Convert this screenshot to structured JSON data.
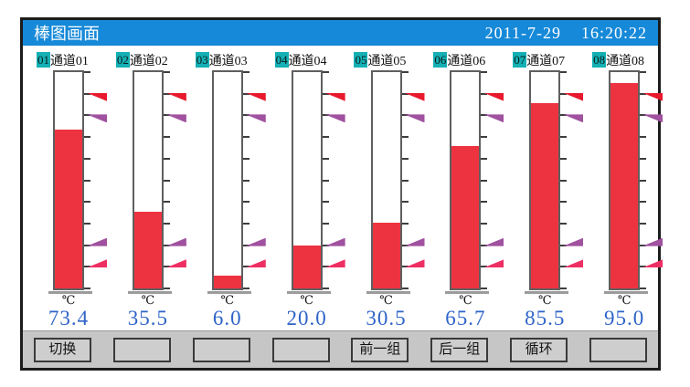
{
  "header": {
    "title": "棒图画面",
    "date": "2011-7-29",
    "time": "16:20:22"
  },
  "colors": {
    "titlebar_blue": "#1689d8",
    "badge_cyan": "#14b0b4",
    "bar_red": "#ee3340",
    "value_blue": "#2e64c8",
    "alarm_red": "#e8192d",
    "alarm_purple": "#a0519f",
    "alarm_pink": "#ee2f63"
  },
  "chart": {
    "unit": "℃",
    "scale_min": 0,
    "scale_max": 100,
    "alarms": [
      {
        "type": "hh",
        "value": 90,
        "color": "#e8192d",
        "direction": "high"
      },
      {
        "type": "h",
        "value": 80,
        "color": "#a0519f",
        "direction": "high"
      },
      {
        "type": "l",
        "value": 20,
        "color": "#a0519f",
        "direction": "low"
      },
      {
        "type": "ll",
        "value": 10,
        "color": "#ee2f63",
        "direction": "low"
      }
    ],
    "channels": [
      {
        "badge": "01",
        "name": "通道01",
        "value": "73.4",
        "percent": 73.4
      },
      {
        "badge": "02",
        "name": "通道02",
        "value": "35.5",
        "percent": 35.5
      },
      {
        "badge": "03",
        "name": "通道03",
        "value": "6.0",
        "percent": 6.0
      },
      {
        "badge": "04",
        "name": "通道04",
        "value": "20.0",
        "percent": 20.0
      },
      {
        "badge": "05",
        "name": "通道05",
        "value": "30.5",
        "percent": 30.5
      },
      {
        "badge": "06",
        "name": "通道06",
        "value": "65.7",
        "percent": 65.7
      },
      {
        "badge": "07",
        "name": "通道07",
        "value": "85.5",
        "percent": 85.5
      },
      {
        "badge": "08",
        "name": "通道08",
        "value": "95.0",
        "percent": 95.0
      }
    ]
  },
  "chart_data": {
    "type": "bar",
    "categories": [
      "通道01",
      "通道02",
      "通道03",
      "通道04",
      "通道05",
      "通道06",
      "通道07",
      "通道08"
    ],
    "values": [
      73.4,
      35.5,
      6.0,
      20.0,
      30.5,
      65.7,
      85.5,
      95.0
    ],
    "title": "棒图画面",
    "ylabel": "℃",
    "ylim": [
      0,
      100
    ],
    "annotations": {
      "alarm_hh": 90,
      "alarm_h": 80,
      "alarm_l": 20,
      "alarm_ll": 10
    }
  },
  "buttons": [
    {
      "label": "切换"
    },
    {
      "label": ""
    },
    {
      "label": ""
    },
    {
      "label": ""
    },
    {
      "label": "前一组"
    },
    {
      "label": "后一组"
    },
    {
      "label": "循环"
    },
    {
      "label": ""
    }
  ]
}
